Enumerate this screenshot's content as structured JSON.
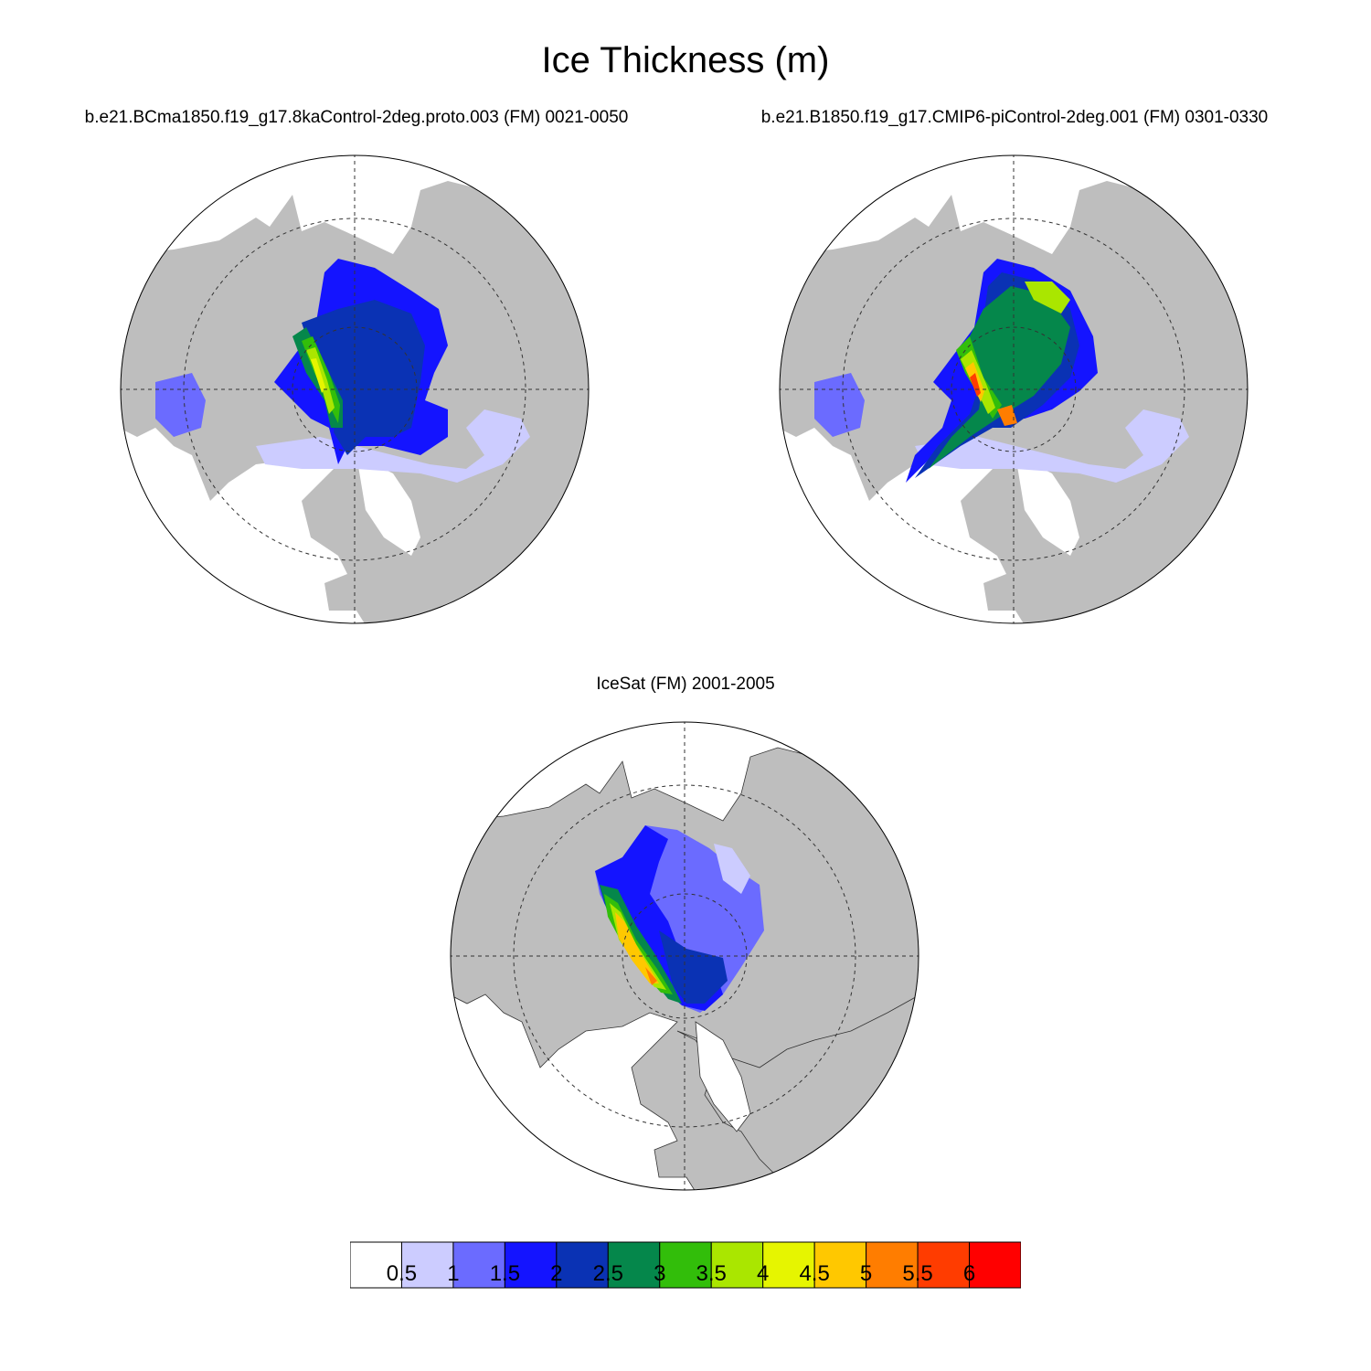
{
  "title": "Ice Thickness (m)",
  "panels": [
    {
      "id": "p1",
      "title": "b.e21.BCma1850.f19_g17.8kaControl-2deg.proto.003 (FM) 0021-0050"
    },
    {
      "id": "p2",
      "title": "b.e21.B1850.f19_g17.CMIP6-piControl-2deg.001 (FM) 0301-0330"
    },
    {
      "id": "p3",
      "title": "IceSat (FM) 2001-2005"
    }
  ],
  "colorbar": {
    "labels": [
      "0.5",
      "1",
      "1.5",
      "2",
      "2.5",
      "3",
      "3.5",
      "4",
      "4.5",
      "5",
      "5.5",
      "6"
    ],
    "colors": [
      "#ffffff",
      "#ccccff",
      "#6b6bff",
      "#1414ff",
      "#0a32b4",
      "#05874b",
      "#32be0a",
      "#aae600",
      "#e6f500",
      "#ffc800",
      "#ff7d00",
      "#ff3c00",
      "#ff0000"
    ]
  },
  "style": {
    "land_color": "#bebebe",
    "ocean_color": "#ffffff"
  }
}
